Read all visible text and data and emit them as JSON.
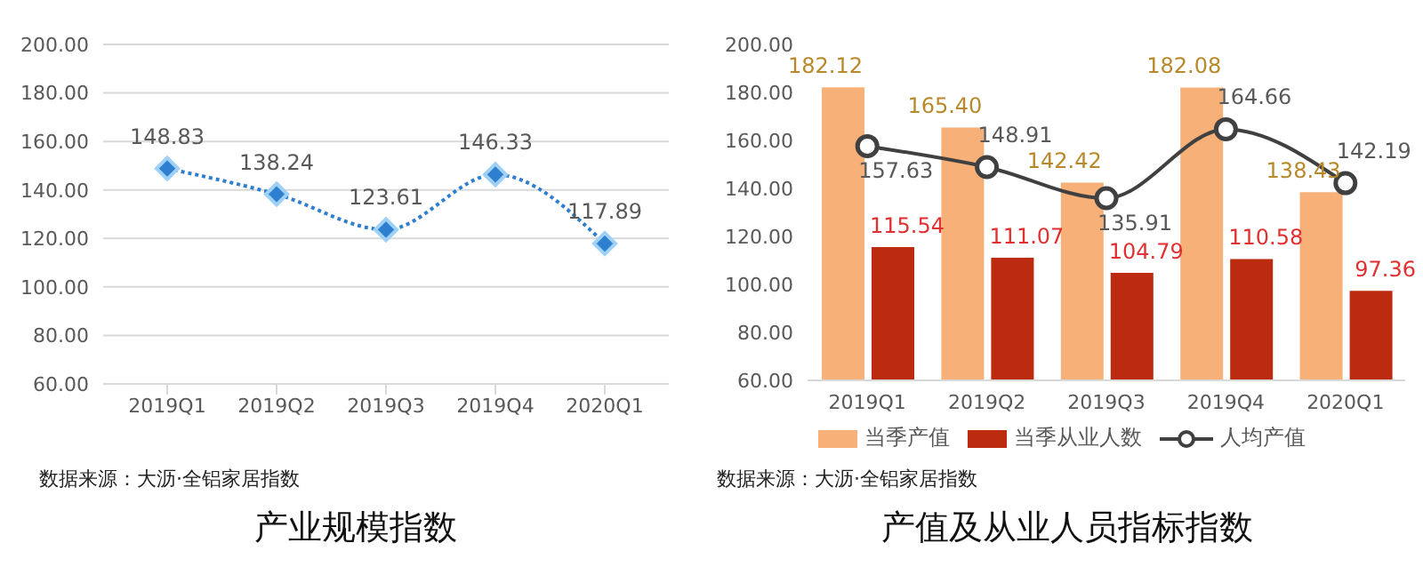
{
  "chart_data": [
    {
      "type": "line",
      "title": "产业规模指数",
      "annotations": [
        "数据来源：大沥·全铝家居指数"
      ],
      "categories": [
        "2019Q1",
        "2019Q2",
        "2019Q3",
        "2019Q4",
        "2020Q1"
      ],
      "series": [
        {
          "color": "#2f7fd0",
          "values": [
            148.83,
            138.24,
            123.61,
            146.33,
            117.89
          ],
          "value_labels": [
            "148.83",
            "138.24",
            "123.61",
            "146.33",
            "117.89"
          ]
        }
      ],
      "ylim": [
        60,
        200
      ],
      "yticks": [
        {
          "value": 60,
          "label": "60.00"
        },
        {
          "value": 80,
          "label": "80.00"
        },
        {
          "value": 100,
          "label": "100.00"
        },
        {
          "value": 120,
          "label": "120.00"
        },
        {
          "value": 140,
          "label": "140.00"
        },
        {
          "value": 160,
          "label": "160.00"
        },
        {
          "value": 180,
          "label": "180.00"
        },
        {
          "value": 200,
          "label": "200.00"
        }
      ],
      "grid": "y",
      "marker": "diamond",
      "line_style": "dotted",
      "legend": false
    },
    {
      "type": "bar",
      "title": "产值及从业人员指标指数",
      "annotations": [
        "数据来源：大沥·全铝家居指数"
      ],
      "categories": [
        "2019Q1",
        "2019Q2",
        "2019Q3",
        "2019Q4",
        "2020Q1"
      ],
      "series": [
        {
          "name": "当季产值",
          "color": "#f6b078",
          "values": [
            182.12,
            165.4,
            142.42,
            182.08,
            138.43
          ],
          "value_labels": [
            "182.12",
            "165.40",
            "142.42",
            "182.08",
            "138.43"
          ]
        },
        {
          "name": "当季从业人数",
          "color": "#bc2a10",
          "values": [
            115.54,
            111.07,
            104.79,
            110.58,
            97.36
          ],
          "value_labels": [
            "115.54",
            "111.07",
            "104.79",
            "110.58",
            "97.36"
          ]
        },
        {
          "name": "人均产值",
          "type": "line",
          "color": "#404040",
          "marker": "circle",
          "values": [
            157.63,
            148.91,
            135.91,
            164.66,
            142.19
          ],
          "value_labels": [
            "157.63",
            "148.91",
            "135.91",
            "164.66",
            "142.19"
          ]
        }
      ],
      "ylim": [
        60,
        200
      ],
      "yticks": [
        {
          "value": 60,
          "label": "60.00"
        },
        {
          "value": 80,
          "label": "80.00"
        },
        {
          "value": 100,
          "label": "100.00"
        },
        {
          "value": 120,
          "label": "120.00"
        },
        {
          "value": 140,
          "label": "140.00"
        },
        {
          "value": 160,
          "label": "160.00"
        },
        {
          "value": 180,
          "label": "180.00"
        },
        {
          "value": 200,
          "label": "200.00"
        }
      ],
      "grid": false,
      "legend": "bottom"
    }
  ]
}
